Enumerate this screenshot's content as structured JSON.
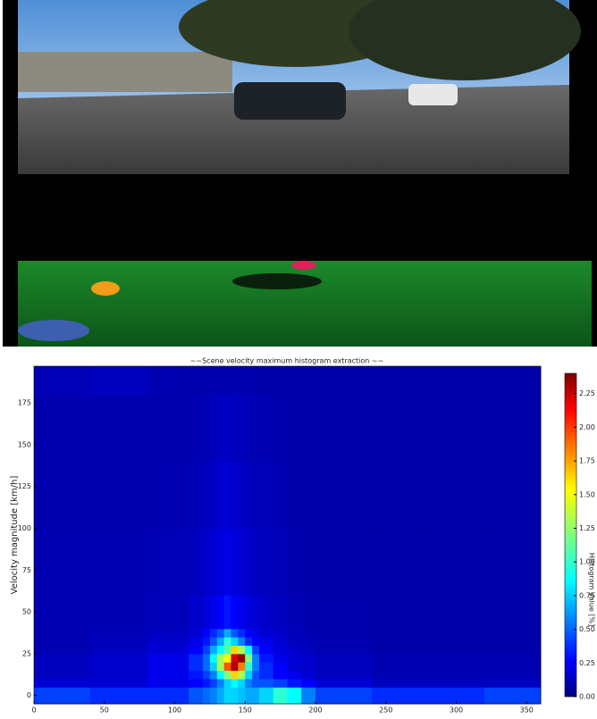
{
  "chart_data": {
    "type": "heatmap",
    "title": "~~Scene velocity maximum histogram extraction ~~",
    "y_label": "Velocity magnitude [km/h]",
    "colorbar_label": "Histogram Value [%]",
    "colormap": "jet",
    "xbins": [
      0,
      40,
      80,
      110,
      120,
      125,
      130,
      135,
      140,
      145,
      150,
      155,
      160,
      170,
      180,
      190,
      200,
      240,
      280,
      320,
      360
    ],
    "ybins": [
      -5,
      5,
      10,
      15,
      20,
      25,
      30,
      35,
      40,
      60,
      100,
      140,
      180,
      197
    ],
    "values": [
      [
        0.45,
        0.4,
        0.4,
        0.5,
        0.55,
        0.6,
        0.7,
        0.8,
        0.8,
        0.75,
        0.7,
        0.7,
        0.8,
        1.0,
        0.9,
        0.6,
        0.45,
        0.4,
        0.4,
        0.45
      ],
      [
        0.2,
        0.2,
        0.25,
        0.3,
        0.35,
        0.45,
        0.6,
        0.8,
        0.9,
        0.8,
        0.6,
        0.5,
        0.5,
        0.45,
        0.35,
        0.3,
        0.2,
        0.15,
        0.15,
        0.15
      ],
      [
        0.15,
        0.18,
        0.25,
        0.35,
        0.45,
        0.6,
        0.9,
        1.2,
        1.6,
        1.3,
        0.8,
        0.5,
        0.4,
        0.3,
        0.25,
        0.2,
        0.15,
        0.12,
        0.12,
        0.12
      ],
      [
        0.15,
        0.18,
        0.25,
        0.4,
        0.55,
        0.8,
        1.3,
        1.9,
        2.3,
        1.8,
        1.0,
        0.6,
        0.4,
        0.3,
        0.2,
        0.18,
        0.15,
        0.12,
        0.12,
        0.12
      ],
      [
        0.15,
        0.18,
        0.25,
        0.4,
        0.55,
        0.9,
        1.3,
        1.5,
        2.2,
        2.35,
        1.2,
        0.6,
        0.35,
        0.25,
        0.2,
        0.18,
        0.15,
        0.12,
        0.12,
        0.12
      ],
      [
        0.12,
        0.15,
        0.2,
        0.3,
        0.45,
        0.7,
        0.9,
        1.1,
        1.6,
        1.3,
        0.9,
        0.45,
        0.3,
        0.22,
        0.18,
        0.15,
        0.12,
        0.1,
        0.1,
        0.1
      ],
      [
        0.12,
        0.14,
        0.18,
        0.25,
        0.35,
        0.5,
        0.7,
        1.0,
        0.8,
        0.6,
        0.4,
        0.3,
        0.25,
        0.2,
        0.15,
        0.13,
        0.12,
        0.1,
        0.1,
        0.1
      ],
      [
        0.12,
        0.13,
        0.16,
        0.2,
        0.3,
        0.4,
        0.5,
        0.7,
        0.5,
        0.4,
        0.3,
        0.25,
        0.2,
        0.18,
        0.14,
        0.12,
        0.11,
        0.1,
        0.1,
        0.1
      ],
      [
        0.12,
        0.12,
        0.14,
        0.18,
        0.22,
        0.25,
        0.3,
        0.35,
        0.3,
        0.25,
        0.22,
        0.2,
        0.17,
        0.15,
        0.13,
        0.12,
        0.11,
        0.1,
        0.1,
        0.1
      ],
      [
        0.12,
        0.12,
        0.13,
        0.15,
        0.18,
        0.2,
        0.22,
        0.24,
        0.22,
        0.2,
        0.18,
        0.16,
        0.15,
        0.13,
        0.12,
        0.11,
        0.1,
        0.1,
        0.1,
        0.1
      ],
      [
        0.11,
        0.11,
        0.12,
        0.13,
        0.15,
        0.16,
        0.18,
        0.2,
        0.18,
        0.16,
        0.15,
        0.14,
        0.13,
        0.12,
        0.11,
        0.1,
        0.1,
        0.1,
        0.1,
        0.1
      ],
      [
        0.11,
        0.11,
        0.11,
        0.12,
        0.13,
        0.14,
        0.15,
        0.16,
        0.15,
        0.14,
        0.13,
        0.12,
        0.12,
        0.11,
        0.1,
        0.1,
        0.1,
        0.1,
        0.1,
        0.1
      ],
      [
        0.13,
        0.15,
        0.12,
        0.11,
        0.11,
        0.11,
        0.12,
        0.12,
        0.12,
        0.11,
        0.11,
        0.11,
        0.1,
        0.1,
        0.1,
        0.1,
        0.1,
        0.1,
        0.1,
        0.1
      ]
    ],
    "xlim": [
      0,
      360
    ],
    "ylim": [
      -5,
      197
    ],
    "xticks": [
      0,
      50,
      100,
      150,
      200,
      250,
      300,
      350
    ],
    "yticks": [
      0,
      25,
      50,
      75,
      100,
      125,
      150,
      175
    ],
    "clim": [
      0,
      2.4
    ],
    "cticks": [
      {
        "value": 0,
        "label": "0.00"
      },
      {
        "value": 0.25,
        "label": "0.25"
      },
      {
        "value": 0.5,
        "label": "0.50"
      },
      {
        "value": 0.75,
        "label": "0.75"
      },
      {
        "value": 1,
        "label": "1.00"
      },
      {
        "value": 1.25,
        "label": "1.25"
      },
      {
        "value": 1.5,
        "label": "1.50"
      },
      {
        "value": 1.75,
        "label": "1.75"
      },
      {
        "value": 2,
        "label": "2.00"
      },
      {
        "value": 2.25,
        "label": "2.25"
      }
    ]
  }
}
